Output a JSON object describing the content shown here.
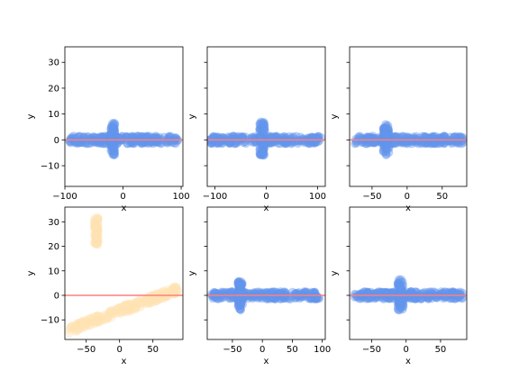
{
  "figure": {
    "background": "#ffffff"
  },
  "colors": {
    "points_blue": "#6495ED",
    "points_orange": "#FFE4B5",
    "reg_line": "#FF7F7F",
    "point_alpha": 0.4
  },
  "chart_data": [
    {
      "type": "scatter",
      "xlabel": "x",
      "ylabel": "y",
      "xlim": [
        -100,
        103
      ],
      "ylim": [
        -18,
        36
      ],
      "xticks": [
        -100,
        0,
        100
      ],
      "yticks": [
        -10,
        0,
        10,
        20,
        30
      ],
      "show_yticklabels": true,
      "point_color": "blue",
      "clusters": [
        {
          "kind": "band",
          "x_range": [
            -93,
            95
          ],
          "y_center": 0,
          "y_spread": 1.5
        },
        {
          "kind": "spike",
          "x_center": -18,
          "x_spread": 4,
          "y_range": [
            -6,
            6.5
          ]
        }
      ],
      "regression": {
        "slope": 0,
        "intercept": 0
      }
    },
    {
      "type": "scatter",
      "xlabel": "x",
      "ylabel": "y",
      "xlim": [
        -115,
        115
      ],
      "ylim": [
        -18,
        36
      ],
      "xticks": [
        -100,
        0,
        100
      ],
      "yticks": [
        -10,
        0,
        10,
        20,
        30
      ],
      "show_yticklabels": false,
      "point_color": "blue",
      "clusters": [
        {
          "kind": "band",
          "x_range": [
            -110,
            108
          ],
          "y_center": 0,
          "y_spread": 1.5
        },
        {
          "kind": "spike",
          "x_center": -8,
          "x_spread": 5,
          "y_range": [
            -6,
            7
          ]
        }
      ],
      "regression": {
        "slope": 0,
        "intercept": 0
      }
    },
    {
      "type": "scatter",
      "xlabel": "x",
      "ylabel": "y",
      "xlim": [
        -82,
        85
      ],
      "ylim": [
        -18,
        36
      ],
      "xticks": [
        -50,
        0,
        50
      ],
      "yticks": [
        -10,
        0,
        10,
        20,
        30
      ],
      "show_yticklabels": false,
      "point_color": "blue",
      "clusters": [
        {
          "kind": "band",
          "x_range": [
            -75,
            80
          ],
          "y_center": 0,
          "y_spread": 1.5
        },
        {
          "kind": "spike",
          "x_center": -30,
          "x_spread": 4,
          "y_range": [
            -6,
            6
          ]
        }
      ],
      "regression": {
        "slope": 0,
        "intercept": 0
      }
    },
    {
      "type": "scatter",
      "xlabel": "x",
      "ylabel": "y",
      "xlim": [
        -82,
        95
      ],
      "ylim": [
        -18,
        36
      ],
      "xticks": [
        -50,
        0,
        50
      ],
      "yticks": [
        -10,
        0,
        10,
        20,
        30
      ],
      "show_yticklabels": true,
      "point_color": "orange",
      "clusters": [
        {
          "kind": "line",
          "x_range": [
            -75,
            88
          ],
          "y_at_start": -14,
          "y_at_end": 2.5,
          "y_spread": 1.6
        },
        {
          "kind": "blob",
          "x_center": -35,
          "x_spread": 3,
          "y_range": [
            20,
            32
          ]
        }
      ],
      "regression": {
        "slope": 0,
        "intercept": 0
      }
    },
    {
      "type": "scatter",
      "xlabel": "x",
      "ylabel": "y",
      "xlim": [
        -92,
        105
      ],
      "ylim": [
        -18,
        36
      ],
      "xticks": [
        -50,
        0,
        50,
        100
      ],
      "yticks": [
        -10,
        0,
        10,
        20,
        30
      ],
      "show_yticklabels": false,
      "point_color": "blue",
      "clusters": [
        {
          "kind": "band",
          "x_range": [
            -85,
            95
          ],
          "y_center": 0,
          "y_spread": 1.5
        },
        {
          "kind": "spike",
          "x_center": -37,
          "x_spread": 4,
          "y_range": [
            -6,
            6
          ]
        }
      ],
      "regression": {
        "slope": 0,
        "intercept": 0
      }
    },
    {
      "type": "scatter",
      "xlabel": "x",
      "ylabel": "y",
      "xlim": [
        -82,
        88
      ],
      "ylim": [
        -18,
        36
      ],
      "xticks": [
        -50,
        0,
        50
      ],
      "yticks": [
        -10,
        0,
        10,
        20,
        30
      ],
      "show_yticklabels": false,
      "point_color": "blue",
      "clusters": [
        {
          "kind": "band",
          "x_range": [
            -75,
            82
          ],
          "y_center": 0,
          "y_spread": 1.5
        },
        {
          "kind": "spike",
          "x_center": -8,
          "x_spread": 4,
          "y_range": [
            -6,
            6.5
          ]
        }
      ],
      "regression": {
        "slope": 0,
        "intercept": 0
      }
    }
  ]
}
